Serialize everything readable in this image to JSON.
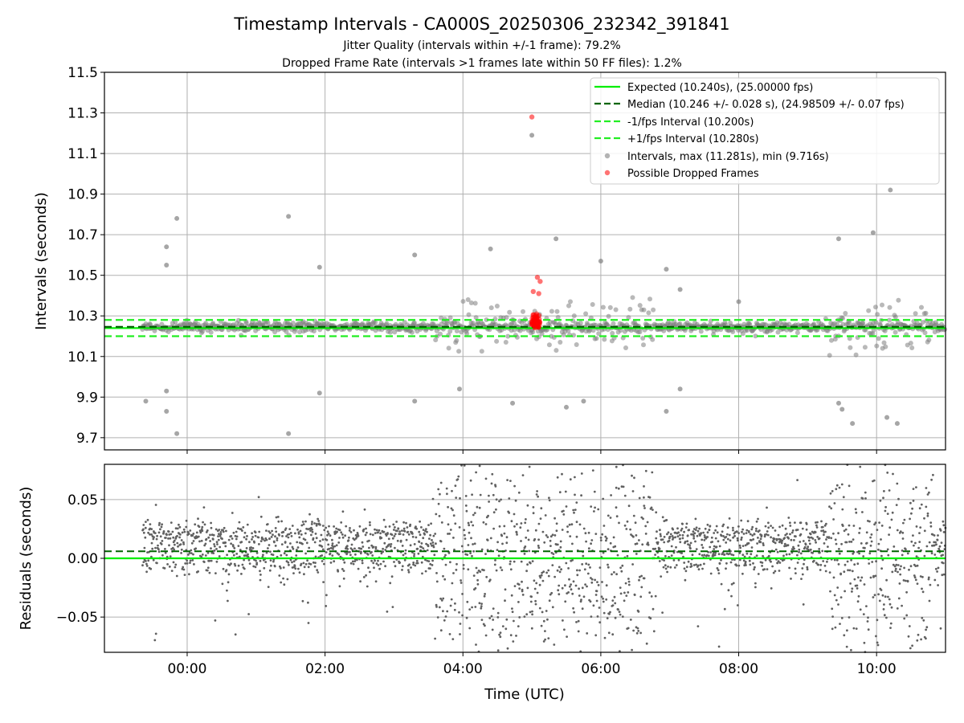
{
  "title": "Timestamp Intervals - CA000S_20250306_232342_391841",
  "subtitle1": "Jitter Quality (intervals within +/-1 frame): 79.2%",
  "subtitle2": "Dropped Frame Rate (intervals >1 frames late within 50 FF files): 1.2%",
  "colors": {
    "expected": "#00ee00",
    "median": "#006400",
    "fps_band": "#22ee22",
    "intervals": "#808080",
    "dropped": "#ff0000",
    "residuals": "#606060",
    "grid": "#b0b0b0"
  },
  "chart_data": [
    {
      "type": "scatter",
      "panel": "intervals",
      "ylabel": "Intervals (seconds)",
      "ylim": [
        9.64,
        11.5
      ],
      "xlim_utc": [
        "23:07",
        "11:00"
      ],
      "yticks": [
        "11.5",
        "11.3",
        "11.1",
        "10.9",
        "10.7",
        "10.5",
        "10.3",
        "10.1",
        "9.9",
        "9.7"
      ],
      "ytick_values": [
        11.5,
        11.3,
        11.1,
        10.9,
        10.7,
        10.5,
        10.3,
        10.1,
        9.9,
        9.7
      ],
      "grid": true,
      "legend_position": "top-right",
      "legend": [
        {
          "label": "Expected (10.240s), (25.00000 fps)",
          "kind": "solid",
          "color": "#00ee00"
        },
        {
          "label": "Median (10.246 +/- 0.028 s), (24.98509 +/- 0.07 fps)",
          "kind": "dashed",
          "color": "#006400"
        },
        {
          "label": "-1/fps Interval (10.200s)",
          "kind": "dashed",
          "color": "#22ee22"
        },
        {
          "label": "+1/fps Interval (10.280s)",
          "kind": "dashed",
          "color": "#22ee22"
        },
        {
          "label": "Intervals, max (11.281s), min (9.716s)",
          "kind": "dot",
          "color": "#808080"
        },
        {
          "label": "Possible Dropped Frames",
          "kind": "dot",
          "color": "#ff0000"
        }
      ],
      "hlines": {
        "expected": 10.24,
        "median": 10.246,
        "minus_1fps": 10.2,
        "plus_1fps": 10.28
      },
      "outlier_points_hours": [
        {
          "x": -0.6,
          "y": 9.88
        },
        {
          "x": -0.3,
          "y": 9.93
        },
        {
          "x": -0.3,
          "y": 9.83
        },
        {
          "x": -0.15,
          "y": 9.72
        },
        {
          "x": -0.3,
          "y": 10.64
        },
        {
          "x": -0.3,
          "y": 10.55
        },
        {
          "x": -0.15,
          "y": 10.78
        },
        {
          "x": 1.47,
          "y": 10.79
        },
        {
          "x": 1.47,
          "y": 9.72
        },
        {
          "x": 1.92,
          "y": 9.92
        },
        {
          "x": 1.92,
          "y": 10.54
        },
        {
          "x": 3.3,
          "y": 10.6
        },
        {
          "x": 3.3,
          "y": 9.88
        },
        {
          "x": 3.95,
          "y": 9.94
        },
        {
          "x": 4.4,
          "y": 10.63
        },
        {
          "x": 4.72,
          "y": 9.87
        },
        {
          "x": 5.0,
          "y": 11.19
        },
        {
          "x": 5.35,
          "y": 10.68
        },
        {
          "x": 5.5,
          "y": 9.85
        },
        {
          "x": 5.75,
          "y": 9.88
        },
        {
          "x": 6.0,
          "y": 10.57
        },
        {
          "x": 6.95,
          "y": 10.53
        },
        {
          "x": 6.95,
          "y": 9.83
        },
        {
          "x": 7.15,
          "y": 9.94
        },
        {
          "x": 7.15,
          "y": 10.43
        },
        {
          "x": 8.0,
          "y": 10.37
        },
        {
          "x": 9.45,
          "y": 10.68
        },
        {
          "x": 9.45,
          "y": 9.87
        },
        {
          "x": 9.5,
          "y": 9.84
        },
        {
          "x": 9.65,
          "y": 9.77
        },
        {
          "x": 9.95,
          "y": 10.71
        },
        {
          "x": 10.15,
          "y": 9.8
        },
        {
          "x": 10.2,
          "y": 10.92
        },
        {
          "x": 10.3,
          "y": 9.77
        }
      ],
      "dropped_frame_points_hours": [
        {
          "x": 5.0,
          "y": 11.28
        },
        {
          "x": 5.08,
          "y": 10.49
        },
        {
          "x": 5.12,
          "y": 10.47
        },
        {
          "x": 5.02,
          "y": 10.42
        },
        {
          "x": 5.1,
          "y": 10.41
        },
        {
          "x": 5.05,
          "y": 10.3
        },
        {
          "x": 5.07,
          "y": 10.28
        },
        {
          "x": 5.1,
          "y": 10.27
        },
        {
          "x": 5.03,
          "y": 10.26
        },
        {
          "x": 5.08,
          "y": 10.25
        }
      ]
    },
    {
      "type": "scatter",
      "panel": "residuals",
      "xlabel": "Time (UTC)",
      "ylabel": "Residuals (seconds)",
      "ylim": [
        -0.08,
        0.08
      ],
      "yticks": [
        "0.05",
        "0.00",
        "−0.05"
      ],
      "ytick_values": [
        0.05,
        0.0,
        -0.05
      ],
      "xticks": [
        "00:00",
        "02:00",
        "04:00",
        "06:00",
        "08:00",
        "10:00"
      ],
      "xtick_hours": [
        0,
        2,
        4,
        6,
        8,
        10
      ],
      "xlim_hours": [
        -1.2,
        11.0
      ],
      "hlines": {
        "expected": 0.0,
        "median": 0.006
      },
      "grid": true
    }
  ]
}
